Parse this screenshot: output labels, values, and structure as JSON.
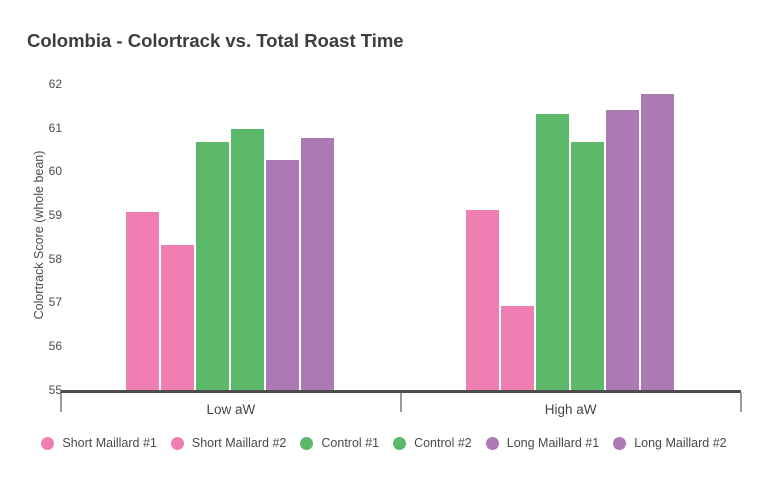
{
  "header": {
    "title": "Colombia - Colortrack vs. Total Roast Time"
  },
  "chart_data": {
    "type": "bar",
    "title": "Colombia - Colortrack vs. Total Roast Time",
    "xlabel": "",
    "ylabel": "Colortrack Score (whole bean)",
    "categories": [
      "Low aW",
      "High aW"
    ],
    "series": [
      {
        "name": "Short Maillard #1",
        "color": "#ef7fb2",
        "values": [
          59.1,
          59.15
        ]
      },
      {
        "name": "Short Maillard #2",
        "color": "#ef7fb2",
        "values": [
          58.35,
          56.95
        ]
      },
      {
        "name": "Control #1",
        "color": "#5cb96c",
        "values": [
          60.7,
          61.35
        ]
      },
      {
        "name": "Control #2",
        "color": "#5cb96c",
        "values": [
          61.0,
          60.7
        ]
      },
      {
        "name": "Long Maillard #1",
        "color": "#ac79b4",
        "values": [
          60.3,
          61.45
        ]
      },
      {
        "name": "Long Maillard #2",
        "color": "#ac79b4",
        "values": [
          60.8,
          61.8
        ]
      }
    ],
    "ylim": [
      55,
      62
    ],
    "yticks": [
      55,
      56,
      57,
      58,
      59,
      60,
      61,
      62
    ],
    "grid": false,
    "legend_position": "bottom",
    "colors": {
      "short_maillard": "#ef7fb2",
      "control": "#5cb96c",
      "long_maillard": "#ac79b4",
      "axis": "#4d4d4d",
      "text": "#4a4a4a"
    }
  }
}
